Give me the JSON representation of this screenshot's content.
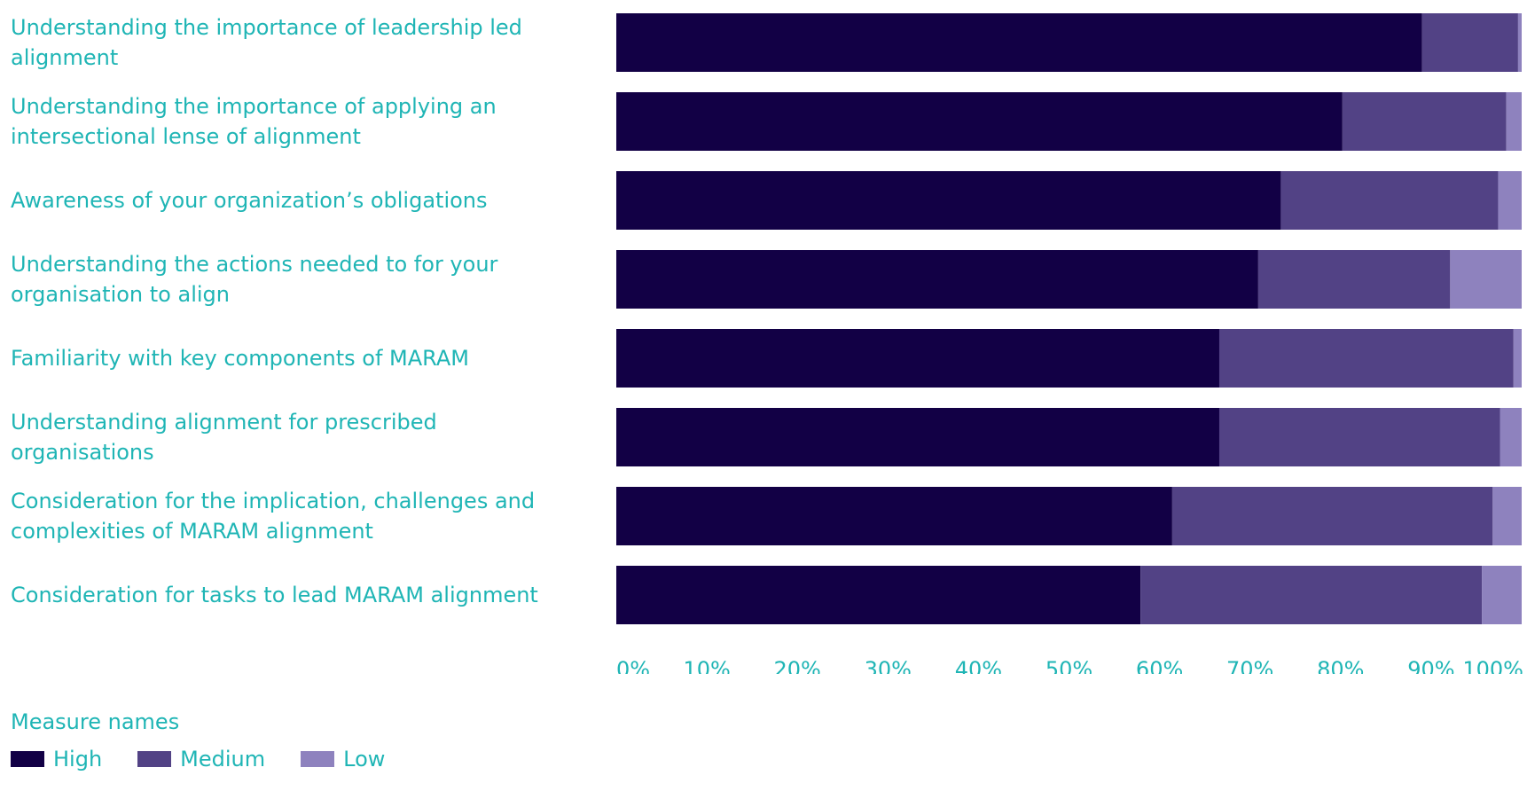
{
  "chart_data": {
    "type": "bar",
    "orientation": "horizontal",
    "stacked": true,
    "percent": true,
    "categories": [
      [
        "Understanding the importance of leadership led",
        "alignment"
      ],
      [
        "Understanding the importance of applying an",
        "intersectional lense of alignment"
      ],
      [
        "Awareness of your organization’s obligations"
      ],
      [
        "Understanding the actions needed to for your",
        "organisation to align"
      ],
      [
        "Familiarity with key components of MARAM"
      ],
      [
        "Understanding alignment for prescribed",
        "organisations"
      ],
      [
        "Consideration for the implication, challenges and",
        "complexities of MARAM alignment"
      ],
      [
        "Consideration for tasks to lead MARAM alignment"
      ]
    ],
    "series": [
      {
        "name": "High",
        "color": "#120045",
        "values": [
          89.0,
          80.2,
          73.4,
          70.9,
          66.6,
          66.6,
          61.4,
          57.9
        ]
      },
      {
        "name": "Medium",
        "color": "#524285",
        "values": [
          10.6,
          18.1,
          24.0,
          21.2,
          32.5,
          31.0,
          35.4,
          37.7
        ]
      },
      {
        "name": "Low",
        "color": "#8e82be",
        "values": [
          0.4,
          1.7,
          2.6,
          7.9,
          0.9,
          2.4,
          3.2,
          4.4
        ]
      }
    ],
    "x_ticks": [
      "0%",
      "10%",
      "20%",
      "30%",
      "40%",
      "50%",
      "60%",
      "70%",
      "80%",
      "90%",
      "100%"
    ],
    "xlim": [
      0,
      100
    ],
    "grid": false,
    "legend_placement": "bottom-left"
  },
  "legend": {
    "title": "Measure names",
    "items": [
      {
        "label": "High",
        "color": "#120045"
      },
      {
        "label": "Medium",
        "color": "#524285"
      },
      {
        "label": "Low",
        "color": "#8e82be"
      }
    ]
  }
}
